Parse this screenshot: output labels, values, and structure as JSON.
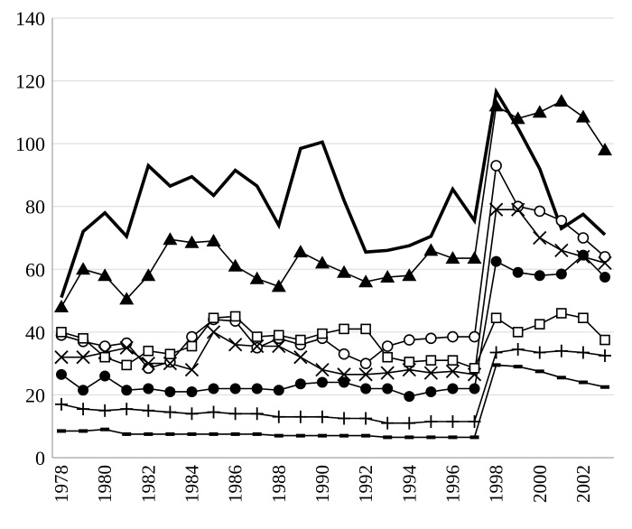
{
  "chart_data": {
    "type": "line",
    "title": "",
    "xlabel": "",
    "ylabel": "",
    "ylim": [
      0,
      140
    ],
    "yticks": [
      0,
      20,
      40,
      60,
      80,
      100,
      120,
      140
    ],
    "x": [
      1978,
      1979,
      1980,
      1981,
      1982,
      1983,
      1984,
      1985,
      1986,
      1987,
      1988,
      1989,
      1990,
      1991,
      1992,
      1993,
      1994,
      1995,
      1996,
      1997,
      1998,
      1999,
      2000,
      2001,
      2002,
      2003
    ],
    "xtick_labels": [
      "1978",
      "1980",
      "1982",
      "1984",
      "1986",
      "1988",
      "1990",
      "1992",
      "1994",
      "1996",
      "1998",
      "2000",
      "2002"
    ],
    "grid": "horizontal",
    "legend": "none",
    "series": [
      {
        "marker": "none",
        "line": "thick",
        "values": [
          51,
          72,
          78,
          70.5,
          93,
          86.5,
          89.5,
          83.5,
          91.5,
          86.5,
          74,
          98.5,
          100.5,
          82,
          65.5,
          66,
          67.5,
          70.5,
          85.5,
          75.5,
          116.5,
          105,
          92,
          73,
          77.5,
          71
        ]
      },
      {
        "marker": "triangle",
        "values": [
          48,
          60,
          58,
          50.5,
          58,
          69.5,
          68.5,
          69,
          61,
          57,
          54.5,
          65.5,
          62,
          59,
          56,
          57.5,
          58,
          66,
          63.5,
          63.5,
          112,
          108,
          110,
          113.5,
          108.5,
          98
        ]
      },
      {
        "marker": "circle-open",
        "values": [
          39,
          37,
          35.5,
          36.5,
          28.5,
          30.5,
          38.5,
          44,
          43.5,
          35,
          38,
          36,
          38,
          33,
          30,
          35.5,
          37.5,
          38,
          38.5,
          38.5,
          93,
          80,
          78.5,
          75.5,
          70,
          64
        ]
      },
      {
        "marker": "x",
        "values": [
          32,
          32,
          33.5,
          35,
          30,
          30,
          28,
          40,
          36,
          35.5,
          35.5,
          32,
          28,
          26.5,
          26.5,
          27,
          28,
          27,
          27.5,
          26.5,
          79,
          79,
          70,
          66,
          64,
          62
        ]
      },
      {
        "marker": "circle-filled",
        "values": [
          26.5,
          21.5,
          26,
          21.5,
          22,
          21,
          21,
          22,
          22,
          22,
          21.5,
          23.5,
          24,
          24,
          22,
          22,
          19.5,
          21,
          22,
          22,
          62.5,
          59,
          58,
          58.5,
          64.5,
          57.5
        ]
      },
      {
        "marker": "square-open",
        "values": [
          40,
          38,
          32,
          29.5,
          34,
          33,
          35.5,
          44.5,
          45,
          38.5,
          39,
          37.5,
          39.5,
          41,
          41,
          32,
          30.5,
          31,
          31,
          28.5,
          44.5,
          40,
          42.5,
          46,
          44.5,
          37.5
        ]
      },
      {
        "marker": "plus",
        "values": [
          17,
          15.5,
          15,
          15.5,
          15,
          14.5,
          14,
          14.5,
          14,
          14,
          13,
          13,
          13,
          12.5,
          12.5,
          11,
          11,
          11.5,
          11.5,
          11.5,
          33.5,
          34.5,
          33.5,
          34,
          33.5,
          32.5
        ]
      },
      {
        "marker": "dash",
        "values": [
          8.5,
          8.5,
          9,
          7.5,
          7.5,
          7.5,
          7.5,
          7.5,
          7.5,
          7.5,
          7,
          7,
          7,
          7,
          7,
          6.5,
          6.5,
          6.5,
          6.5,
          6.5,
          29.5,
          29,
          27.5,
          25.5,
          24,
          22.5
        ]
      }
    ]
  }
}
